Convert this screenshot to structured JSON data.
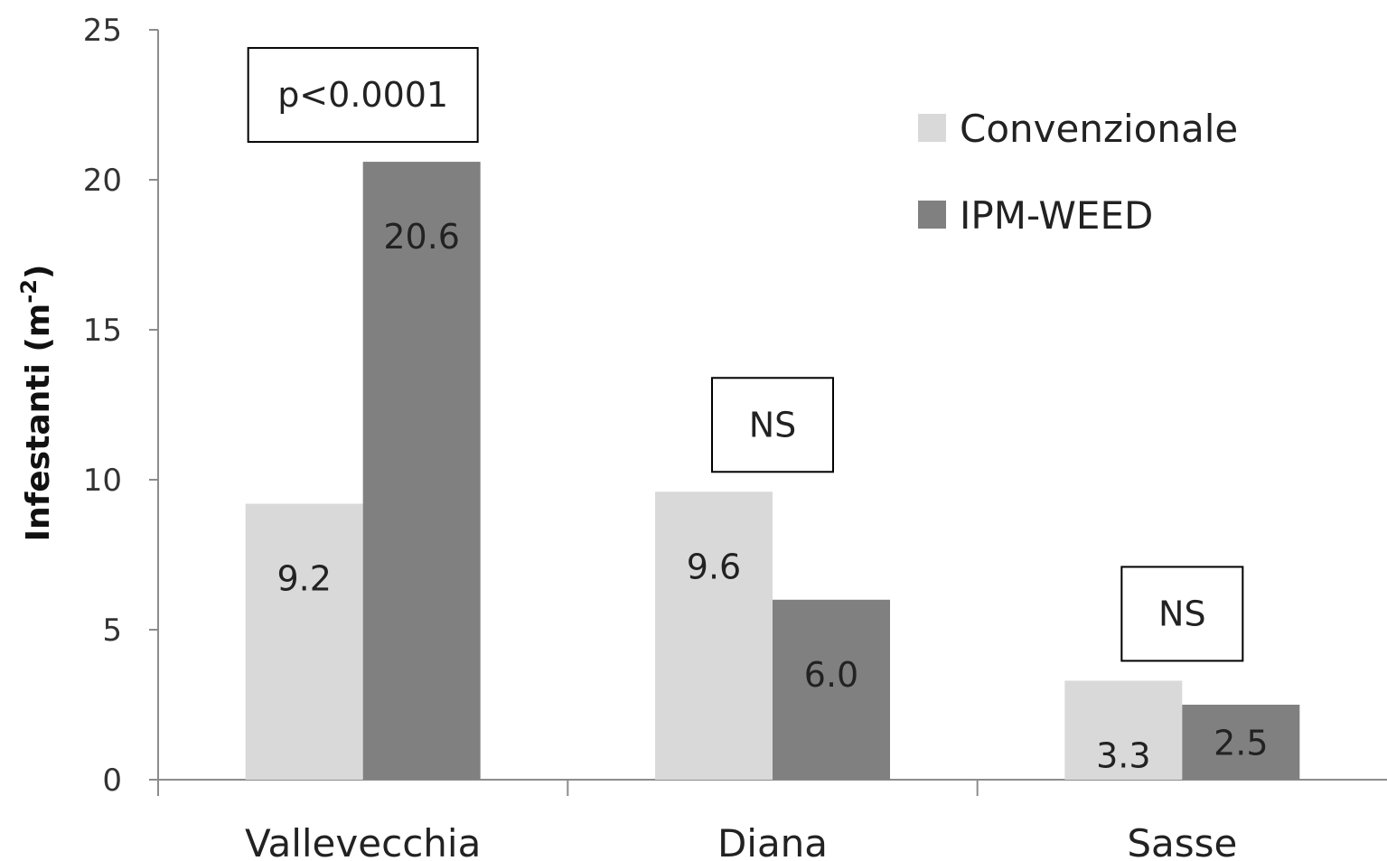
{
  "chart_data": {
    "type": "bar",
    "title": "",
    "xlabel": "",
    "ylabel": "Infestanti (m",
    "ylabel_sup": "-2",
    "ylabel_close": ")",
    "ylim": [
      0,
      25
    ],
    "yticks": [
      "0",
      "5",
      "10",
      "15",
      "20",
      "25"
    ],
    "categories": [
      "Vallevecchia",
      "Diana",
      "Sasse"
    ],
    "series": [
      {
        "name": "Convenzionale",
        "color": "#d9d9d9",
        "values": [
          9.2,
          9.6,
          3.3
        ],
        "labels": [
          "9.2",
          "9.6",
          "3.3"
        ]
      },
      {
        "name": "IPM-WEED",
        "color": "#808080",
        "values": [
          20.6,
          6.0,
          2.5
        ],
        "labels": [
          "20.6",
          "6.0",
          "2.5"
        ]
      }
    ],
    "annotations": [
      "p<0.0001",
      "NS",
      "NS"
    ],
    "legend_position": "top-right",
    "grid": false
  }
}
